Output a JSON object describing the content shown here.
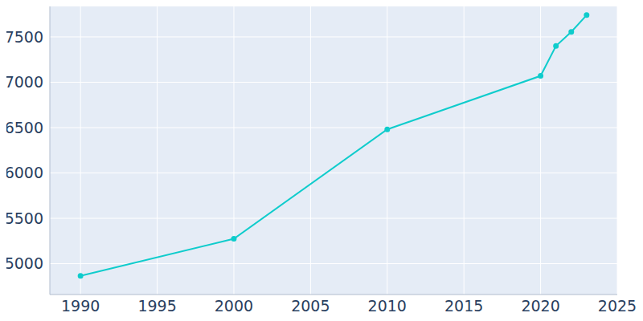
{
  "chart_data": {
    "type": "line",
    "x": [
      1990,
      2000,
      2010,
      2020,
      2021,
      2022,
      2023
    ],
    "values": [
      4865,
      5275,
      6480,
      7070,
      7400,
      7555,
      7740
    ],
    "color": "#0fcccc",
    "xlim": [
      1988,
      2025
    ],
    "xticks": [
      1990,
      1995,
      2000,
      2005,
      2010,
      2015,
      2020,
      2025
    ],
    "ylim": [
      4660,
      7880
    ],
    "yticks": [
      5000,
      5500,
      6000,
      6500,
      7000,
      7500
    ],
    "grid": true,
    "marker": "circle",
    "line_style": "solid"
  }
}
